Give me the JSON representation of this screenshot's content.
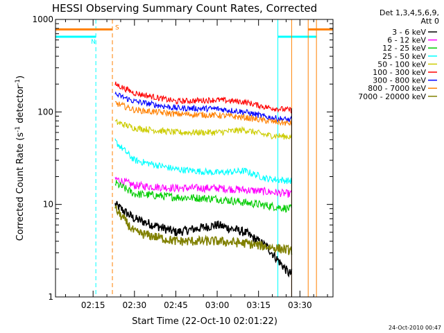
{
  "chart_data": {
    "type": "line",
    "title": "HESSI Observing Summary Count Rates, Corrected",
    "xlabel": "Start Time (22-Oct-10 02:01:22)",
    "ylabel_main": "Corrected Count Rate (s",
    "ylabel_sup1": "-1",
    "ylabel_mid": " detector",
    "ylabel_sup2": "-1",
    "ylabel_end": ")",
    "y_scale": "log",
    "ylim": [
      1,
      1000
    ],
    "xlim": [
      "02:01:22",
      "03:42:00"
    ],
    "x_ticks": [
      "02:15",
      "02:30",
      "02:45",
      "03:00",
      "03:15",
      "03:30"
    ],
    "y_ticks": [
      "1",
      "10",
      "100",
      "1000"
    ],
    "legend_title": [
      "Det 1,3,4,5,6,9,",
      "Att 0"
    ],
    "legend_placement": "right",
    "footer_date": "24-Oct-2010 00:47",
    "data_start": "02:23",
    "data_end": "03:27",
    "series": [
      {
        "name": "3 - 6 keV",
        "color": "#000000",
        "points": [
          [
            "02:23",
            10
          ],
          [
            "02:30",
            7
          ],
          [
            "02:45",
            5
          ],
          [
            "03:00",
            6
          ],
          [
            "03:10",
            5
          ],
          [
            "03:18",
            3.5
          ],
          [
            "03:26",
            1.8
          ]
        ]
      },
      {
        "name": "6 - 12 keV",
        "color": "#ff00ff",
        "points": [
          [
            "02:23",
            19
          ],
          [
            "02:30",
            16
          ],
          [
            "02:45",
            15
          ],
          [
            "03:00",
            15
          ],
          [
            "03:15",
            14
          ],
          [
            "03:26",
            13
          ]
        ]
      },
      {
        "name": "12 - 25 keV",
        "color": "#00cc00",
        "points": [
          [
            "02:23",
            17
          ],
          [
            "02:30",
            13
          ],
          [
            "02:45",
            12
          ],
          [
            "03:00",
            11.5
          ],
          [
            "03:15",
            10
          ],
          [
            "03:26",
            9
          ]
        ]
      },
      {
        "name": "25 - 50 keV",
        "color": "#00ffff",
        "points": [
          [
            "02:23",
            48
          ],
          [
            "02:30",
            30
          ],
          [
            "02:45",
            24
          ],
          [
            "03:00",
            22
          ],
          [
            "03:10",
            23
          ],
          [
            "03:18",
            19
          ],
          [
            "03:26",
            18
          ]
        ]
      },
      {
        "name": "50 - 100 keV",
        "color": "#cccc00",
        "points": [
          [
            "02:23",
            78
          ],
          [
            "02:30",
            67
          ],
          [
            "02:45",
            60
          ],
          [
            "03:00",
            60
          ],
          [
            "03:10",
            64
          ],
          [
            "03:18",
            56
          ],
          [
            "03:26",
            54
          ]
        ]
      },
      {
        "name": "100 - 300 keV",
        "color": "#ff0000",
        "points": [
          [
            "02:23",
            200
          ],
          [
            "02:30",
            160
          ],
          [
            "02:45",
            130
          ],
          [
            "03:00",
            135
          ],
          [
            "03:10",
            128
          ],
          [
            "03:18",
            112
          ],
          [
            "03:26",
            105
          ]
        ]
      },
      {
        "name": "300 - 800 keV",
        "color": "#0000ff",
        "points": [
          [
            "02:23",
            155
          ],
          [
            "02:30",
            130
          ],
          [
            "02:45",
            110
          ],
          [
            "03:00",
            108
          ],
          [
            "03:10",
            100
          ],
          [
            "03:18",
            88
          ],
          [
            "03:26",
            82
          ]
        ]
      },
      {
        "name": "800 - 7000 keV",
        "color": "#ff8000",
        "points": [
          [
            "02:23",
            125
          ],
          [
            "02:30",
            105
          ],
          [
            "02:45",
            95
          ],
          [
            "03:00",
            92
          ],
          [
            "03:10",
            87
          ],
          [
            "03:18",
            80
          ],
          [
            "03:26",
            75
          ]
        ]
      },
      {
        "name": "7000 - 20000 keV",
        "color": "#808000",
        "points": [
          [
            "02:23",
            9
          ],
          [
            "02:30",
            5
          ],
          [
            "02:45",
            4
          ],
          [
            "03:00",
            4
          ],
          [
            "03:10",
            3.8
          ],
          [
            "03:18",
            3.5
          ],
          [
            "03:26",
            3.2
          ]
        ]
      }
    ],
    "flags": [
      {
        "label": "N",
        "color": "#00ffff",
        "bars": [
          [
            "02:01:22",
            "02:16"
          ],
          [
            "03:22",
            "03:36"
          ]
        ],
        "level": 650,
        "markers": [
          "02:16",
          "03:22"
        ]
      },
      {
        "label": "S",
        "color": "#ff8000",
        "bars": [
          [
            "02:01:22",
            "02:22"
          ],
          [
            "03:33",
            "03:42"
          ]
        ],
        "level": 780,
        "markers": [
          "02:22",
          "03:27",
          "03:33",
          "03:36"
        ]
      }
    ]
  }
}
